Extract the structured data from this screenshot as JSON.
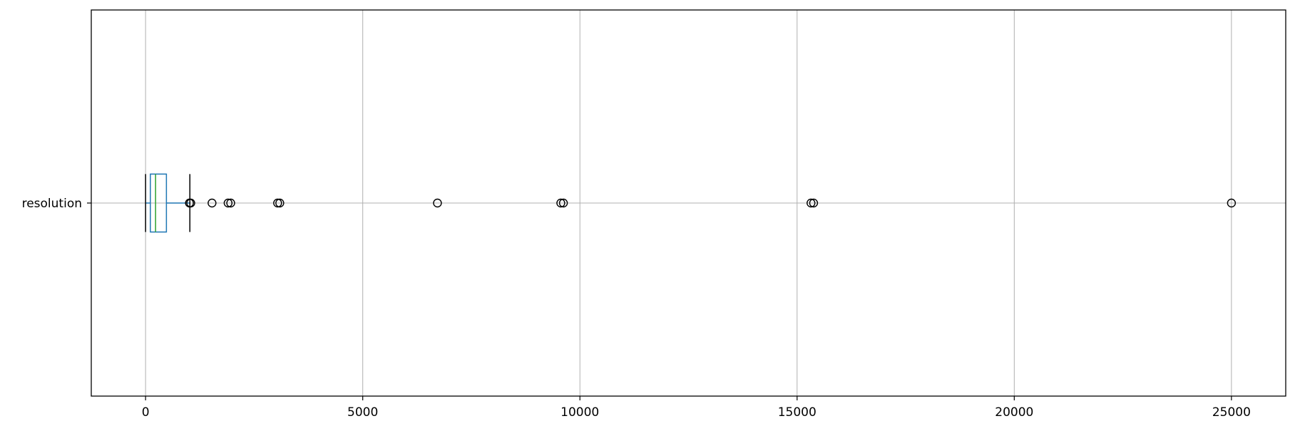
{
  "chart_data": {
    "type": "boxplot",
    "orientation": "horizontal",
    "title": "",
    "xlabel": "",
    "ylabel": "",
    "xlim": [
      -1250,
      26250
    ],
    "x_ticks": [
      0,
      5000,
      10000,
      15000,
      20000,
      25000
    ],
    "x_tick_labels": [
      "0",
      "5000",
      "10000",
      "15000",
      "20000",
      "25000"
    ],
    "categories": [
      "resolution"
    ],
    "grid": true,
    "series": [
      {
        "category": "resolution",
        "whisker_low": 0,
        "q1": 110,
        "median": 230,
        "q3": 480,
        "whisker_high": 1020,
        "outliers": [
          1010,
          1040,
          1530,
          1900,
          1960,
          3040,
          3090,
          6720,
          9560,
          9620,
          15320,
          15380,
          25000
        ],
        "box_color": "#1f77b4",
        "median_color": "#2ca02c"
      }
    ]
  }
}
